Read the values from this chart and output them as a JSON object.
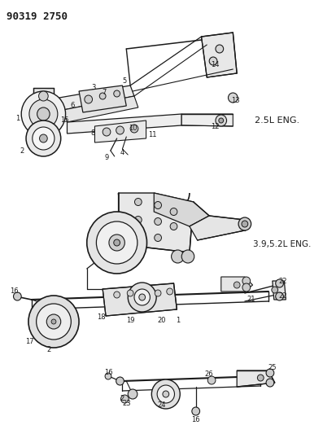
{
  "title": "90319 2750",
  "bg_color": "#ffffff",
  "ink": "#1a1a1a",
  "label_2_5L": "2.5L ENG.",
  "label_3_9L": "3.9,5.2L ENG.",
  "fig_w": 3.97,
  "fig_h": 5.33,
  "dpi": 100
}
